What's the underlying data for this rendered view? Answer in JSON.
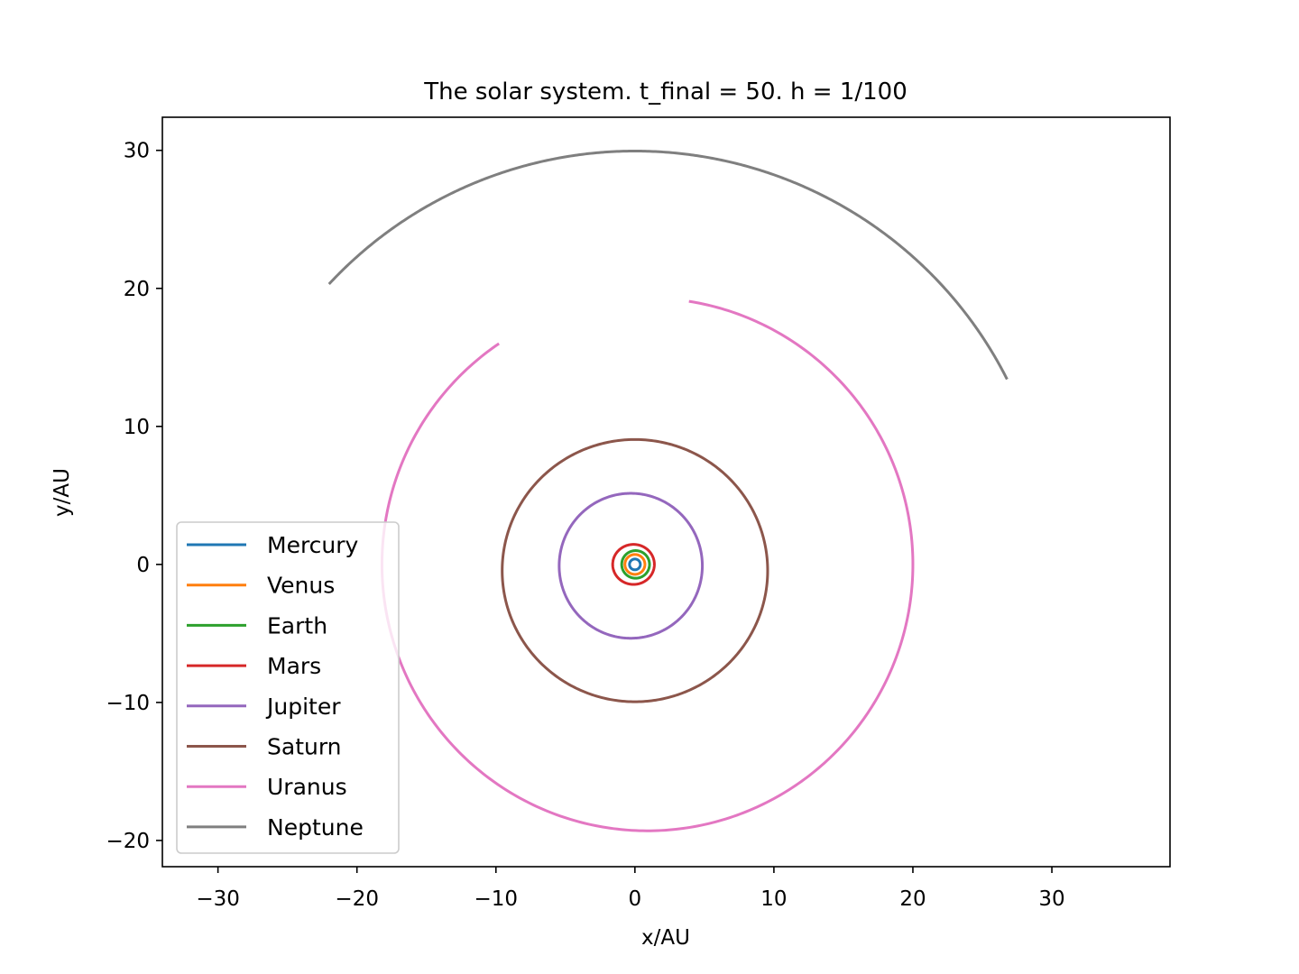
{
  "chart_data": {
    "type": "line",
    "title": "The solar system. t_final = 50. h = 1/100",
    "xlabel": "x/AU",
    "ylabel": "y/AU",
    "xlim": [
      -34,
      38.5
    ],
    "ylim": [
      -21.9,
      32.4
    ],
    "xticks": [
      -30,
      -20,
      -10,
      0,
      10,
      20,
      30
    ],
    "yticks": [
      -20,
      -10,
      0,
      10,
      20,
      30
    ],
    "xtick_labels": [
      "−30",
      "−20",
      "−10",
      "0",
      "10",
      "20",
      "30"
    ],
    "ytick_labels": [
      "−20",
      "−10",
      "0",
      "10",
      "20",
      "30"
    ],
    "grid": false,
    "legend_position": "lower-left",
    "series": [
      {
        "name": "Mercury",
        "color": "#1f77b4",
        "cx": 0.0,
        "cy": 0.0,
        "rx": 0.39,
        "ry": 0.39,
        "start_deg": 0,
        "end_deg": 360
      },
      {
        "name": "Venus",
        "color": "#ff7f0e",
        "cx": 0.0,
        "cy": 0.0,
        "rx": 0.72,
        "ry": 0.72,
        "start_deg": 0,
        "end_deg": 360
      },
      {
        "name": "Earth",
        "color": "#2ca02c",
        "cx": 0.05,
        "cy": 0.0,
        "rx": 1.0,
        "ry": 1.0,
        "start_deg": 0,
        "end_deg": 360
      },
      {
        "name": "Mars",
        "color": "#d62728",
        "cx": -0.1,
        "cy": 0.0,
        "rx": 1.5,
        "ry": 1.45,
        "start_deg": 0,
        "end_deg": 360
      },
      {
        "name": "Jupiter",
        "color": "#9467bd",
        "cx": -0.3,
        "cy": -0.1,
        "rx": 5.15,
        "ry": 5.25,
        "start_deg": 0,
        "end_deg": 360
      },
      {
        "name": "Saturn",
        "color": "#8c564b",
        "cx": 0.0,
        "cy": -0.45,
        "rx": 9.55,
        "ry": 9.5,
        "start_deg": 0,
        "end_deg": 360
      },
      {
        "name": "Uranus",
        "color": "#e377c2",
        "cx": 0.9,
        "cy": 0.0,
        "rx": 19.1,
        "ry": 19.3,
        "start_deg": 81,
        "end_deg": -236
      },
      {
        "name": "Neptune",
        "color": "#7f7f7f",
        "cx": 0.0,
        "cy": 0.0,
        "rx": 29.95,
        "ry": 29.95,
        "start_deg": 26.6,
        "end_deg": 137.3
      }
    ]
  }
}
